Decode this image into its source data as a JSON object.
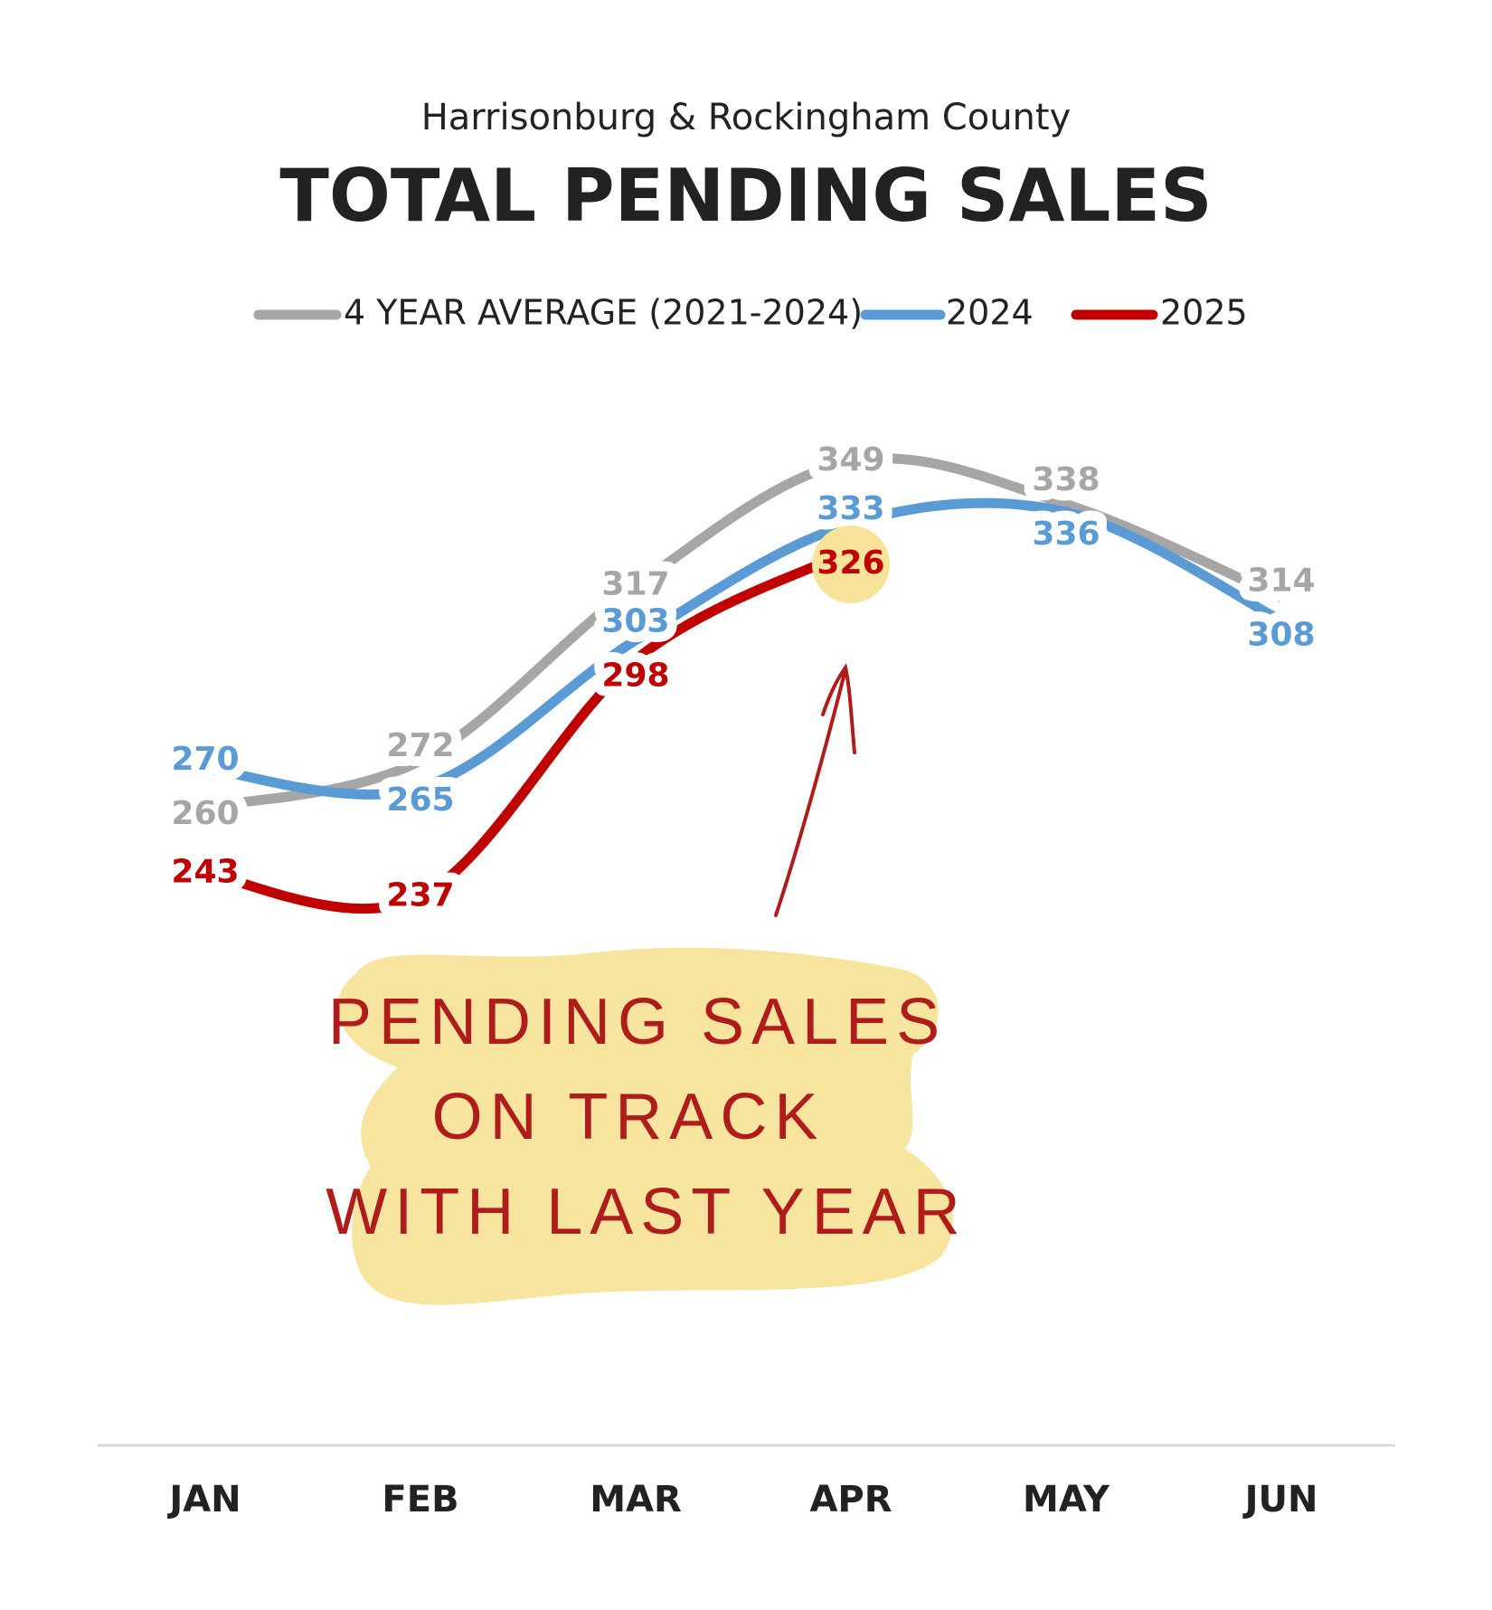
{
  "chart_data": {
    "type": "line",
    "subtitle": "Harrisonburg & Rockingham County",
    "title": "TOTAL PENDING SALES",
    "categories": [
      "JAN",
      "FEB",
      "MAR",
      "APR",
      "MAY",
      "JUN"
    ],
    "series": [
      {
        "name": "4 YEAR AVERAGE (2021-2024)",
        "color": "#a6a6a6",
        "values": [
          260,
          272,
          317,
          349,
          338,
          314
        ]
      },
      {
        "name": "2024",
        "color": "#5b9bd5",
        "values": [
          270,
          265,
          303,
          333,
          336,
          308
        ]
      },
      {
        "name": "2025",
        "color": "#c00000",
        "values": [
          243,
          237,
          298,
          326,
          null,
          null
        ]
      }
    ],
    "ylim": [
      100,
      370
    ],
    "annotation": [
      "PENDING SALES",
      "ON TRACK",
      "WITH LAST YEAR"
    ]
  }
}
